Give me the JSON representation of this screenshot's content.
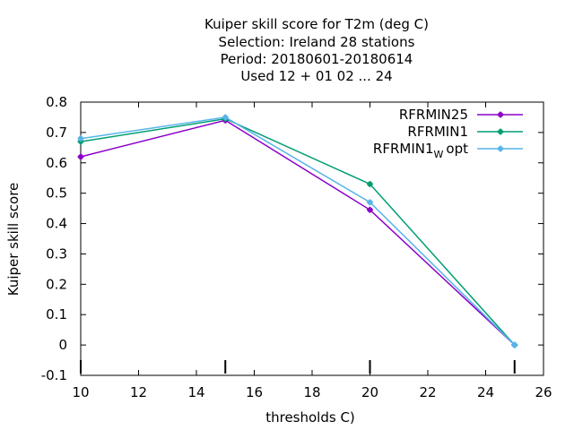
{
  "chart_data": {
    "type": "line",
    "title_lines": [
      "Kuiper skill score  for T2m (deg C)",
      "Selection: Ireland      28 stations",
      "Period: 20180601-20180614",
      "Used  12 + 01 02 ... 24"
    ],
    "xlabel": "thresholds C)",
    "ylabel": "Kuiper skill score",
    "xlim": [
      10,
      26
    ],
    "ylim": [
      -0.1,
      0.8
    ],
    "xticks": [
      "10",
      "12",
      "14",
      "16",
      "18",
      "20",
      "22",
      "24",
      "26"
    ],
    "yticks": [
      "-0.1",
      "0",
      "0.1",
      "0.2",
      "0.3",
      "0.4",
      "0.5",
      "0.6",
      "0.7",
      "0.8"
    ],
    "marker_x": [
      10,
      15,
      20,
      25
    ],
    "legend_position": "top-right",
    "grid": false,
    "series": [
      {
        "name": "RFRMIN25",
        "color": "#8b00c8",
        "x": [
          10,
          15,
          20,
          25
        ],
        "y": [
          0.62,
          0.74,
          0.445,
          0.0
        ]
      },
      {
        "name": "RFRMIN1",
        "color": "#009e73",
        "x": [
          10,
          15,
          20,
          25
        ],
        "y": [
          0.67,
          0.745,
          0.53,
          0.0
        ]
      },
      {
        "name": "RFRMIN1",
        "name_sub": "W",
        "name_suffix": "opt",
        "color": "#56b4e9",
        "x": [
          10,
          15,
          20,
          25
        ],
        "y": [
          0.68,
          0.75,
          0.47,
          0.0
        ]
      }
    ]
  }
}
